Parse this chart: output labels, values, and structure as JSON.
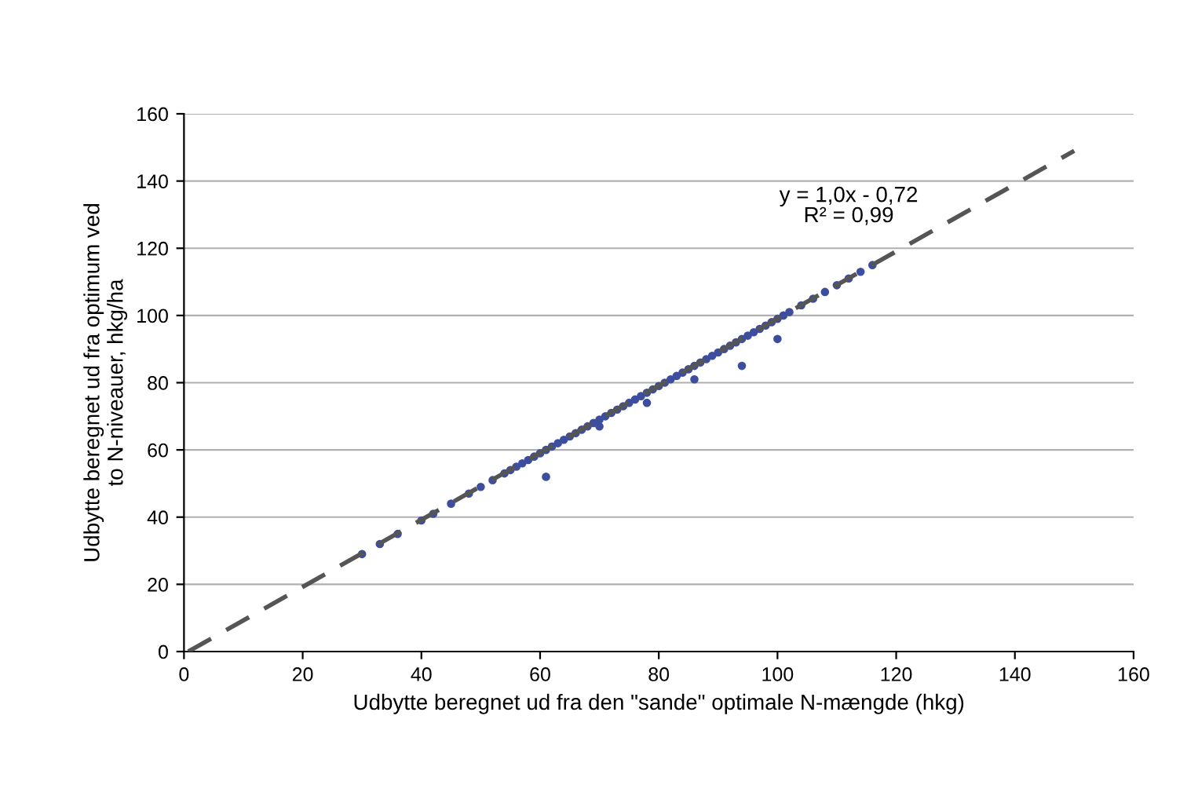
{
  "chart_data": {
    "type": "scatter",
    "xlabel": "Udbytte beregnet ud fra den \"sande\" optimale N-mængde (hkg)",
    "ylabel": "Udbytte beregnet ud fra optimum ved\nto N-niveauer, hkg/ha",
    "x": [
      30,
      33,
      36,
      40,
      42,
      45,
      48,
      50,
      52,
      54,
      55,
      56,
      57,
      58,
      59,
      60,
      61,
      62,
      63,
      64,
      65,
      66,
      67,
      68,
      69,
      70,
      71,
      72,
      73,
      74,
      75,
      76,
      77,
      78,
      79,
      80,
      81,
      82,
      83,
      84,
      85,
      86,
      87,
      88,
      89,
      90,
      91,
      92,
      93,
      94,
      95,
      96,
      97,
      98,
      99,
      100,
      101,
      102,
      104,
      106,
      108,
      110,
      112,
      114,
      116,
      61,
      86,
      94,
      100,
      70,
      78
    ],
    "series": [
      {
        "color": "#3d4e9e",
        "marker": "circle",
        "values": [
          29,
          32,
          35,
          39,
          41,
          44,
          47,
          49,
          51,
          53,
          54,
          55,
          56,
          57,
          58,
          59,
          60,
          61,
          62,
          63,
          64,
          65,
          66,
          67,
          68,
          69,
          70,
          71,
          72,
          73,
          74,
          75,
          76,
          77,
          78,
          79,
          80,
          81,
          82,
          83,
          84,
          85,
          86,
          87,
          88,
          89,
          90,
          91,
          92,
          93,
          94,
          95,
          96,
          97,
          98,
          99,
          100,
          101,
          103,
          105,
          107,
          109,
          111,
          113,
          115,
          52,
          81,
          85,
          93,
          67,
          74
        ]
      },
      {
        "type": "line",
        "color": "#555555",
        "line_style": "dashed",
        "x": [
          0.72,
          150
        ],
        "values": [
          0,
          149
        ]
      }
    ],
    "annotations": [
      "y = 1,0x - 0,72\nR² = 0,99"
    ],
    "xlim": [
      0,
      160
    ],
    "ylim": [
      0,
      160
    ],
    "xticks": [
      0,
      20,
      40,
      60,
      80,
      100,
      120,
      140,
      160
    ],
    "yticks": [
      0,
      20,
      40,
      60,
      80,
      100,
      120,
      140,
      160
    ],
    "grid": "y",
    "legend": false
  }
}
